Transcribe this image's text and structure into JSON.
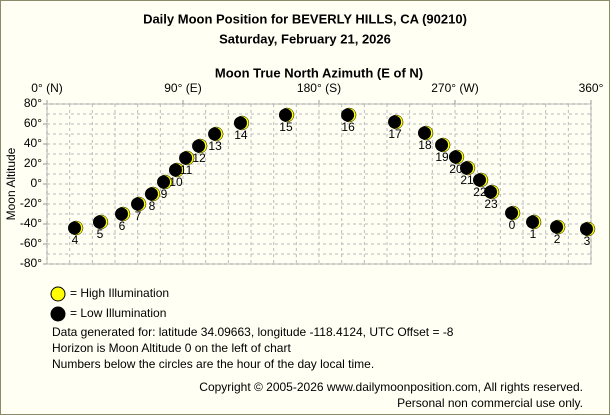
{
  "chart_data": {
    "type": "scatter",
    "title": "Daily Moon Position for BEVERLY HILLS, CA (90210)",
    "subtitle": "Saturday, February 21, 2026",
    "x_label": "Moon True North Azimuth (E of N)",
    "y_label": "Moon Altitude",
    "xlim": [
      0,
      360
    ],
    "ylim": [
      -80,
      80
    ],
    "xticks": [
      {
        "value": 0,
        "label": "0° (N)"
      },
      {
        "value": 90,
        "label": "90° (E)"
      },
      {
        "value": 180,
        "label": "180° (S)"
      },
      {
        "value": 270,
        "label": "270° (W)"
      },
      {
        "value": 360,
        "label": "360°"
      }
    ],
    "yticks": [
      {
        "value": 80,
        "label": "80°"
      },
      {
        "value": 60,
        "label": "60°"
      },
      {
        "value": 40,
        "label": "40°"
      },
      {
        "value": 20,
        "label": "20°"
      },
      {
        "value": 0,
        "label": "0°"
      },
      {
        "value": -20,
        "label": "-20°"
      },
      {
        "value": -40,
        "label": "-40°"
      },
      {
        "value": -60,
        "label": "-60°"
      },
      {
        "value": -80,
        "label": "-80°"
      }
    ],
    "grid": true,
    "x": [
      19.2,
      35.7,
      50.3,
      60.9,
      70.1,
      78.1,
      86.0,
      92.7,
      101.3,
      111.9,
      129.0,
      158.8,
      199.9,
      231.0,
      250.8,
      262.1,
      271.3,
      278.6,
      287.2,
      294.5,
      308.4,
      322.3,
      338.2,
      358.0
    ],
    "y": [
      -44,
      -38,
      -30,
      -20,
      -10,
      2,
      14,
      26,
      38,
      50,
      61,
      69,
      69,
      62,
      51,
      39,
      27,
      16,
      4,
      -8,
      -29,
      -38,
      -43,
      -45
    ],
    "point_labels": [
      "4",
      "5",
      "6",
      "7",
      "8",
      "9",
      "10",
      "11",
      "12",
      "13",
      "14",
      "15",
      "16",
      "17",
      "18",
      "19",
      "20",
      "21",
      "22",
      "23",
      "0",
      "1",
      "2",
      "3"
    ],
    "legend": [
      {
        "label": "= High Illumination",
        "color": "#ffff00"
      },
      {
        "label": "= Low Illumination",
        "color": "#000000"
      }
    ],
    "notes": [
      "Data generated for: latitude 34.09663, longitude -118.4124, UTC Offset = -8",
      "Horizon is Moon Altitude 0 on the left of chart",
      "Numbers below the circles are the hour of the day local time."
    ],
    "copyright": [
      "Copyright © 2005-2026 www.dailymoonposition.com, All rights reserved.",
      "Personal non commercial use only."
    ]
  }
}
